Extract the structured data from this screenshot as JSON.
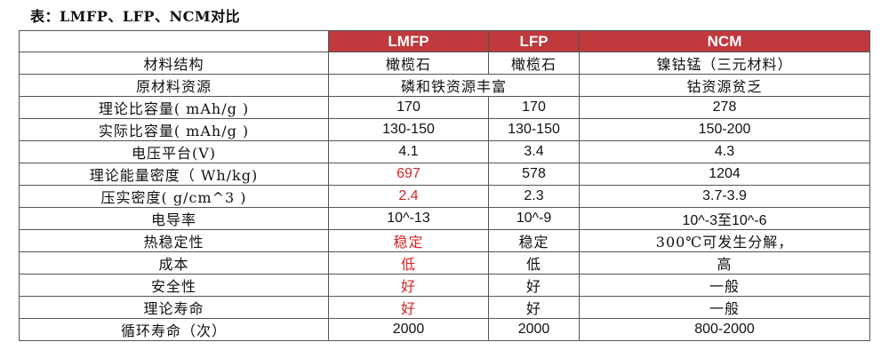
{
  "caption": "表：LMFP、LFP、NCM对比",
  "headers": [
    "",
    "LMFP",
    "LFP",
    "NCM"
  ],
  "rows": [
    {
      "label": "材料结构",
      "lmfp": "橄榄石",
      "lfp": "橄榄石",
      "ncm": "镍钴锰（三元材料）"
    },
    {
      "label": "原材料资源",
      "merged": "磷和铁资源丰富",
      "ncm": "钴资源贫乏"
    },
    {
      "label": "理论比容量( mAh/g )",
      "lmfp": "170",
      "lfp": "170",
      "ncm": "278"
    },
    {
      "label": "实际比容量( mAh/g )",
      "lmfp": "130-150",
      "lfp": "130-150",
      "ncm": "150-200"
    },
    {
      "label": "电压平台(V)",
      "lmfp": "4.1",
      "lfp": "3.4",
      "ncm": "4.3"
    },
    {
      "label": "理论能量密度（ Wh/kg)",
      "lmfp": "697",
      "lfp": "578",
      "ncm": "1204"
    },
    {
      "label": "压实密度( g/cm^3 )",
      "lmfp": "2.4",
      "lfp": "2.3",
      "ncm": "3.7-3.9"
    },
    {
      "label": "电导率",
      "lmfp": "10^-13",
      "lfp": "10^-9",
      "ncm": "10^-3至10^-6"
    },
    {
      "label": "热稳定性",
      "lmfp": "稳定",
      "lfp": "稳定",
      "ncm": "300℃可发生分解，"
    },
    {
      "label": "成本",
      "lmfp": "低",
      "lfp": "低",
      "ncm": "高"
    },
    {
      "label": "安全性",
      "lmfp": "好",
      "lfp": "好",
      "ncm": "一般"
    },
    {
      "label": "理论寿命",
      "lmfp": "好",
      "lfp": "好",
      "ncm": "一般"
    },
    {
      "label": "循环寿命（次）",
      "lmfp": "2000",
      "lfp": "2000",
      "ncm": "800-2000"
    }
  ],
  "highlight_color": "#d62525",
  "header_color": "#c0393d"
}
